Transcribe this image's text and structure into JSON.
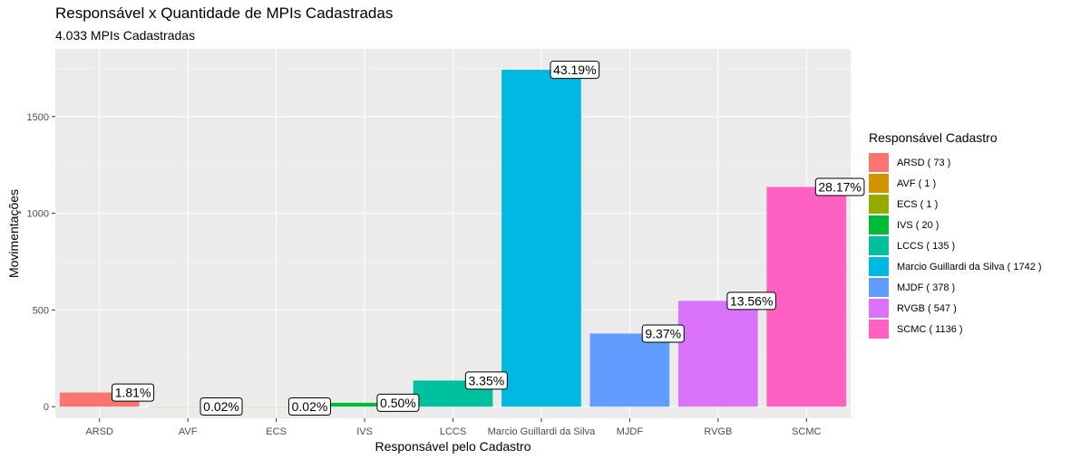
{
  "chart_data": {
    "type": "bar",
    "title": "Responsável x Quantidade de MPIs Cadastradas",
    "subtitle": "4.033  MPIs Cadastradas",
    "xlabel": "Responsável pelo Cadastro",
    "ylabel": "Movimentações",
    "ylim": [
      -60,
      1850
    ],
    "yticks": [
      0,
      500,
      1000,
      1500
    ],
    "grid": true,
    "legend_title": "Responsável Cadastro",
    "legend_position": "right",
    "categories": [
      "ARSD",
      "AVF",
      "ECS",
      "IVS",
      "LCCS",
      "Marcio Guillardi da Silva",
      "MJDF",
      "RVGB",
      "SCMC"
    ],
    "values": [
      73,
      1,
      1,
      20,
      135,
      1742,
      378,
      547,
      1136
    ],
    "percent_labels": [
      "1.81%",
      "0.02%",
      "0.02%",
      "0.50%",
      "3.35%",
      "43.19%",
      "9.37%",
      "13.56%",
      "28.17%"
    ],
    "legend_labels": [
      "ARSD ( 73 )",
      "AVF ( 1 )",
      "ECS ( 1 )",
      "IVS ( 20 )",
      "LCCS ( 135 )",
      "Marcio Guillardi da Silva ( 1742 )",
      "MJDF ( 378 )",
      "RVGB ( 547 )",
      "SCMC ( 1136 )"
    ],
    "colors": [
      "#F8766D",
      "#D39200",
      "#93AA00",
      "#00BA38",
      "#00C19F",
      "#00B9E3",
      "#619CFF",
      "#DB72FB",
      "#FF61C3"
    ]
  }
}
